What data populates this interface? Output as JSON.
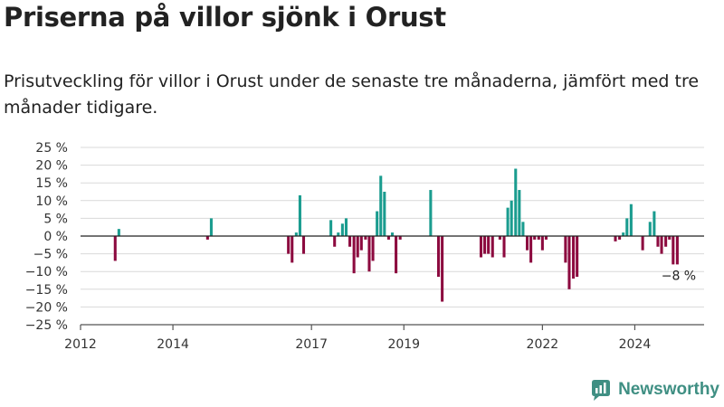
{
  "header": {
    "title": "Priserna på villor sjönk i Orust",
    "subtitle": "Prisutveckling för villor i Orust under de senaste tre månaderna, jämfört med tre månader tidigare."
  },
  "brand": {
    "name": "Newsworthy",
    "icon": "newsworthy-logo-icon",
    "color": "#3f8f83"
  },
  "colors": {
    "positive": "#1a9c8f",
    "negative": "#8c0a3f"
  },
  "chart_data": {
    "type": "bar",
    "title": "",
    "xlabel": "",
    "ylabel": "",
    "y_unit": "%",
    "ylim": [
      -25,
      25
    ],
    "y_ticks": [
      25,
      20,
      15,
      10,
      5,
      0,
      -5,
      -10,
      -15,
      -20,
      -25
    ],
    "y_tick_labels": [
      "25 %",
      "20 %",
      "15 %",
      "10 %",
      "5 %",
      "0 %",
      "−5 %",
      "−10 %",
      "−15 %",
      "−20 %",
      "−25 %"
    ],
    "x_range": [
      2012.0,
      2025.5
    ],
    "x_ticks": [
      2012,
      2014,
      2017,
      2019,
      2022,
      2024
    ],
    "x_tick_labels": [
      "2012",
      "2014",
      "2017",
      "2019",
      "2022",
      "2024"
    ],
    "grid": true,
    "legend": "none",
    "annotation": {
      "text": "−8 %",
      "x": 2024.95,
      "y": -8
    },
    "x": [
      2012.75,
      2012.83,
      2014.75,
      2014.83,
      2016.5,
      2016.58,
      2016.67,
      2016.75,
      2016.83,
      2017.42,
      2017.5,
      2017.58,
      2017.67,
      2017.75,
      2017.83,
      2017.92,
      2018.0,
      2018.08,
      2018.17,
      2018.25,
      2018.33,
      2018.42,
      2018.5,
      2018.58,
      2018.67,
      2018.75,
      2018.83,
      2018.92,
      2019.58,
      2019.75,
      2019.83,
      2020.67,
      2020.75,
      2020.83,
      2020.92,
      2021.08,
      2021.17,
      2021.25,
      2021.33,
      2021.42,
      2021.5,
      2021.58,
      2021.67,
      2021.75,
      2021.83,
      2021.92,
      2022.0,
      2022.08,
      2022.5,
      2022.58,
      2022.67,
      2022.75,
      2023.58,
      2023.67,
      2023.75,
      2023.83,
      2023.92,
      2024.17,
      2024.33,
      2024.42,
      2024.5,
      2024.58,
      2024.67,
      2024.75,
      2024.83,
      2024.92
    ],
    "values": [
      -7,
      2,
      -1,
      5,
      -5,
      -7.5,
      1,
      11.5,
      -5,
      4.5,
      -3,
      1,
      3.5,
      5,
      -3,
      -10.5,
      -6,
      -4,
      -1,
      -10,
      -7,
      7,
      17,
      12.5,
      -1,
      1,
      -10.5,
      -1,
      13,
      -11.5,
      -18.5,
      -6,
      -5,
      -5,
      -6,
      -1,
      -6,
      8,
      10,
      19,
      13,
      4,
      -4,
      -7.5,
      -1,
      -1,
      -4,
      -1,
      -7.5,
      -15,
      -12,
      -11.5,
      -1.5,
      -1,
      1,
      5,
      9,
      -4,
      4,
      7,
      -3,
      -5,
      -3,
      -1,
      -8,
      -8
    ]
  }
}
